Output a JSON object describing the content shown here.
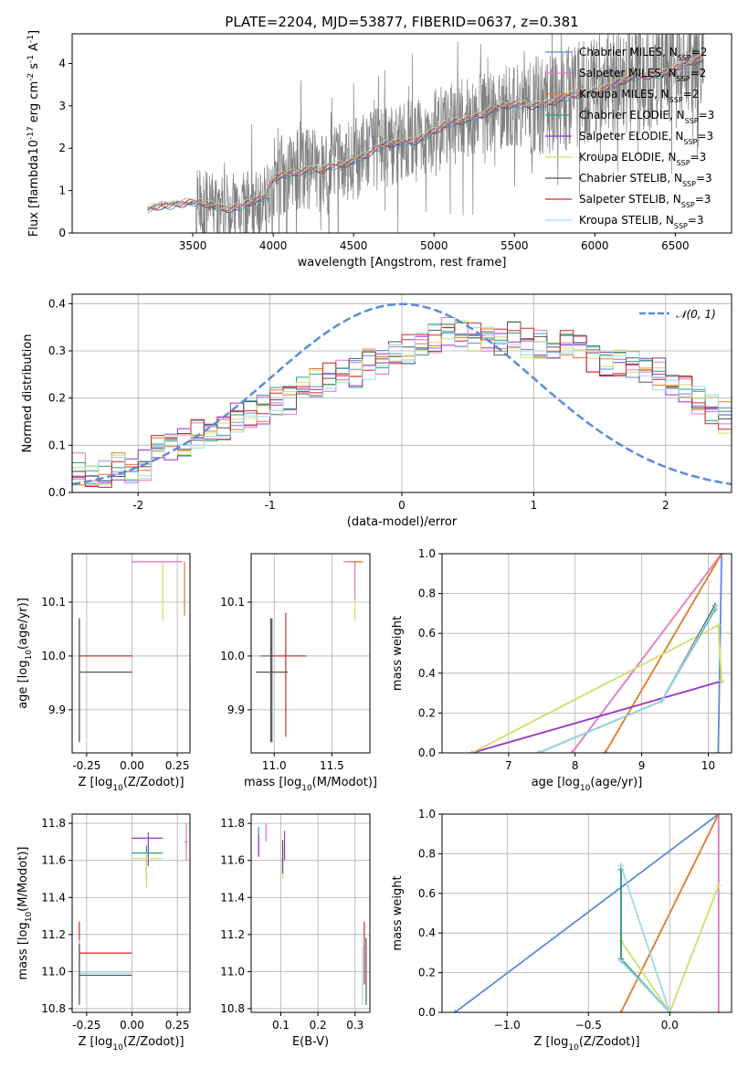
{
  "figure": {
    "title": "PLATE=2204, MJD=53877, FIBERID=0637, z=0.381"
  },
  "model_names": [
    "Chabrier MILES",
    "Salpeter MILES",
    "Kroupa MILES",
    "Chabrier ELODIE",
    "Salpeter ELODIE",
    "Kroupa ELODIE",
    "Chabrier STELIB",
    "Salpeter STELIB",
    "Kroupa STELIB"
  ],
  "model_nssp": [
    "2",
    "2",
    "2",
    "3",
    "3",
    "3",
    "3",
    "3",
    "3"
  ],
  "model_colors": [
    "#5b8cd8",
    "#e377c2",
    "#e07b2a",
    "#2ca080",
    "#9932cc",
    "#cde06a",
    "#555555",
    "#d62728",
    "#9ed9e8"
  ],
  "spectrum_color": "#808080",
  "chart_data": [
    {
      "id": "spectrum",
      "type": "line",
      "xlabel": "wavelength [Angstrom, rest frame]",
      "ylabel": "Flux [f$_\\lambda$10$^{-17}$ erg cm$^{-2}$ s$^{-1}$ A$^{-1}$]",
      "xlim": [
        2750,
        6850
      ],
      "ylim": [
        0,
        4.7
      ],
      "xticks": [
        3500,
        4000,
        4500,
        5000,
        5500,
        6000,
        6500
      ],
      "yticks": [
        0,
        1,
        2,
        3,
        4
      ],
      "grid": false,
      "legend_position": "top-right",
      "model_continuum": [
        [
          3220,
          0.55
        ],
        [
          3300,
          0.68
        ],
        [
          3400,
          0.72
        ],
        [
          3500,
          0.7
        ],
        [
          3600,
          0.65
        ],
        [
          3700,
          0.62
        ],
        [
          3800,
          0.66
        ],
        [
          3900,
          0.75
        ],
        [
          3950,
          0.8
        ],
        [
          4000,
          1.3
        ],
        [
          4100,
          1.45
        ],
        [
          4200,
          1.5
        ],
        [
          4300,
          1.45
        ],
        [
          4400,
          1.6
        ],
        [
          4500,
          1.75
        ],
        [
          4600,
          1.9
        ],
        [
          4700,
          2.05
        ],
        [
          4800,
          2.15
        ],
        [
          4900,
          2.25
        ],
        [
          5000,
          2.4
        ],
        [
          5100,
          2.55
        ],
        [
          5200,
          2.7
        ],
        [
          5300,
          2.85
        ],
        [
          5400,
          2.95
        ],
        [
          5500,
          3.0
        ],
        [
          5600,
          3.05
        ],
        [
          5700,
          3.1
        ],
        [
          5800,
          3.15
        ],
        [
          5900,
          3.25
        ],
        [
          6000,
          3.4
        ],
        [
          6100,
          3.5
        ],
        [
          6200,
          3.6
        ],
        [
          6300,
          3.7
        ],
        [
          6400,
          3.8
        ],
        [
          6500,
          3.9
        ],
        [
          6600,
          4.0
        ],
        [
          6700,
          4.1
        ]
      ],
      "observed_start": 3220,
      "observed_end": 6680,
      "noisy_start": 3520
    },
    {
      "id": "residuals",
      "type": "line",
      "xlabel": "(data-model)/error",
      "ylabel": "Normed distribution",
      "xlim": [
        -2.5,
        2.5
      ],
      "ylim": [
        0,
        0.42
      ],
      "xticks": [
        -2,
        -1,
        0,
        1,
        2
      ],
      "yticks": [
        0.0,
        0.1,
        0.2,
        0.3,
        0.4
      ],
      "grid": true,
      "legend": "$\\mathcal{N}(0,1)$",
      "gaussian": {
        "mean": 0,
        "sigma": 1,
        "color": "#5b8cd8"
      },
      "histogram_bin_width": 0.1,
      "histogram_envelope": [
        0.05,
        0.04,
        0.04,
        0.05,
        0.05,
        0.06,
        0.09,
        0.09,
        0.11,
        0.12,
        0.14,
        0.14,
        0.16,
        0.17,
        0.18,
        0.19,
        0.2,
        0.22,
        0.23,
        0.24,
        0.25,
        0.25,
        0.27,
        0.28,
        0.29,
        0.3,
        0.31,
        0.33,
        0.34,
        0.34,
        0.33,
        0.33,
        0.32,
        0.33,
        0.32,
        0.32,
        0.31,
        0.32,
        0.3,
        0.29,
        0.28,
        0.28,
        0.27,
        0.26,
        0.25,
        0.23,
        0.22,
        0.2,
        0.18,
        0.16
      ]
    },
    {
      "id": "Z-vs-age",
      "type": "scatter",
      "xlabel": "Z [log$_{10}$(Z/Z$_\\odot$)]",
      "ylabel": "age  [log$_{10}$(age/yr)]",
      "xlim": [
        -0.33,
        0.32
      ],
      "ylim": [
        9.82,
        10.19
      ],
      "xticks": [
        -0.25,
        0.0,
        0.25
      ],
      "yticks": [
        9.9,
        10.0,
        10.1
      ],
      "grid": true,
      "points": [
        {
          "x": -0.29,
          "y": 10.0,
          "xerr": [
            0.0,
            0.29
          ],
          "yerr": [
            0.16,
            0.07
          ],
          "model": 6
        },
        {
          "x": -0.29,
          "y": 9.97,
          "xerr": [
            0.0,
            0.29
          ],
          "yerr": [
            0.13,
            0.1
          ],
          "model": 6
        },
        {
          "x": -0.29,
          "y": 10.0,
          "xerr": [
            0.0,
            0.29
          ],
          "yerr": [
            0.0,
            0.0
          ],
          "model": 7
        },
        {
          "x": 0.29,
          "y": 10.175,
          "xerr": [
            0.0,
            0.0
          ],
          "yerr": [
            0.1,
            0.0
          ],
          "model": 2
        },
        {
          "x": 0.17,
          "y": 10.175,
          "xerr": [
            0.17,
            0.1
          ],
          "yerr": [
            0.11,
            0.0
          ],
          "model": 5
        },
        {
          "x": 0.16,
          "y": 10.175,
          "xerr": [
            0.16,
            0.12
          ],
          "yerr": [
            0.0,
            0.0
          ],
          "model": 1
        }
      ]
    },
    {
      "id": "mass-vs-age",
      "type": "scatter",
      "xlabel": "mass [log$_{10}$(M/M$_\\odot$)]",
      "ylabel": "",
      "xlim": [
        10.8,
        11.83
      ],
      "ylim": [
        9.82,
        10.19
      ],
      "xticks": [
        11.0,
        11.5
      ],
      "yticks": [
        9.9,
        10.0,
        10.1
      ],
      "grid": true,
      "points": [
        {
          "x": 10.98,
          "y": 10.0,
          "xerr": [
            0.1,
            0.3
          ],
          "yerr": [
            0.16,
            0.07
          ],
          "model": 6
        },
        {
          "x": 11.1,
          "y": 10.0,
          "xerr": [
            0.12,
            0.17
          ],
          "yerr": [
            0.15,
            0.08
          ],
          "model": 7
        },
        {
          "x": 10.97,
          "y": 9.97,
          "xerr": [
            0.13,
            0.15
          ],
          "yerr": [
            0.13,
            0.1
          ],
          "model": 6
        },
        {
          "x": 11.7,
          "y": 10.175,
          "xerr": [
            0.08,
            0.06
          ],
          "yerr": [
            0.11,
            0.0
          ],
          "model": 5
        },
        {
          "x": 11.7,
          "y": 10.175,
          "xerr": [
            0.1,
            0.07
          ],
          "yerr": [
            0.07,
            0.0
          ],
          "model": 1
        },
        {
          "x": 11.72,
          "y": 10.175,
          "xerr": [
            0.06,
            0.05
          ],
          "yerr": [
            0.0,
            0.0
          ],
          "model": 2
        }
      ]
    },
    {
      "id": "age-vs-weight",
      "type": "line",
      "xlabel": "age  [log$_{10}$(age/yr)]",
      "ylabel": "mass weight",
      "xlim": [
        6.0,
        10.35
      ],
      "ylim": [
        0,
        1.0
      ],
      "xticks": [
        7,
        8,
        9,
        10
      ],
      "yticks": [
        0.0,
        0.2,
        0.4,
        0.6,
        0.8,
        1.0
      ],
      "grid": true,
      "series": [
        {
          "model": 0,
          "points": [
            [
              10.15,
              0.0
            ],
            [
              10.2,
              1.0
            ]
          ]
        },
        {
          "model": 1,
          "points": [
            [
              7.95,
              0.0
            ],
            [
              10.2,
              1.0
            ]
          ]
        },
        {
          "model": 2,
          "points": [
            [
              8.45,
              0.0
            ],
            [
              10.2,
              1.0
            ]
          ]
        },
        {
          "model": 4,
          "points": [
            [
              6.45,
              0.0
            ],
            [
              10.2,
              0.36
            ]
          ]
        },
        {
          "model": 5,
          "points": [
            [
              6.45,
              0.0
            ],
            [
              10.15,
              0.64
            ],
            [
              10.2,
              0.36
            ]
          ]
        },
        {
          "model": 6,
          "points": [
            [
              7.45,
              0.0
            ],
            [
              9.3,
              0.26
            ],
            [
              10.1,
              0.74
            ]
          ]
        },
        {
          "model": 3,
          "points": [
            [
              7.45,
              0.0
            ],
            [
              9.3,
              0.26
            ],
            [
              10.1,
              0.72
            ]
          ]
        },
        {
          "model": 8,
          "points": [
            [
              7.45,
              0.0
            ],
            [
              9.3,
              0.26
            ],
            [
              10.12,
              0.74
            ]
          ]
        }
      ]
    },
    {
      "id": "Z-vs-mass",
      "type": "scatter",
      "xlabel": "Z [log$_{10}$(Z/Z$_\\odot$)]",
      "ylabel": "mass [log$_{10}$(M/M$_\\odot$)]",
      "xlim": [
        -0.33,
        0.32
      ],
      "ylim": [
        10.78,
        11.85
      ],
      "xticks": [
        -0.25,
        0.0,
        0.25
      ],
      "yticks": [
        10.8,
        11.0,
        11.2,
        11.4,
        11.6,
        11.8
      ],
      "grid": true,
      "points": [
        {
          "x": -0.29,
          "y": 11.1,
          "xerr": [
            0.0,
            0.29
          ],
          "yerr": [
            0.2,
            0.17
          ],
          "model": 7
        },
        {
          "x": -0.29,
          "y": 10.99,
          "xerr": [
            0.0,
            0.29
          ],
          "yerr": [
            0.17,
            0.18
          ],
          "model": 8
        },
        {
          "x": -0.29,
          "y": 10.98,
          "xerr": [
            0.0,
            0.29
          ],
          "yerr": [
            0.16,
            0.17
          ],
          "model": 6
        },
        {
          "x": 0.09,
          "y": 11.72,
          "xerr": [
            0.09,
            0.08
          ],
          "yerr": [
            0.15,
            0.03
          ],
          "model": 4
        },
        {
          "x": 0.08,
          "y": 11.64,
          "xerr": [
            0.08,
            0.09
          ],
          "yerr": [
            0.15,
            0.04
          ],
          "model": 3
        },
        {
          "x": 0.08,
          "y": 11.61,
          "xerr": [
            0.08,
            0.09
          ],
          "yerr": [
            0.16,
            0.03
          ],
          "model": 5
        },
        {
          "x": 0.3,
          "y": 11.7,
          "xerr": [
            0.01,
            0.01
          ],
          "yerr": [
            0.1,
            0.1
          ],
          "model": 1
        }
      ]
    },
    {
      "id": "EBV-vs-mass",
      "type": "scatter",
      "xlabel": "E(B-V)",
      "ylabel": "",
      "xlim": [
        0.02,
        0.34
      ],
      "ylim": [
        10.78,
        11.85
      ],
      "xticks": [
        0.1,
        0.2,
        0.3
      ],
      "yticks": [
        10.8,
        11.0,
        11.2,
        11.4,
        11.6,
        11.8
      ],
      "grid": true,
      "points": [
        {
          "x": 0.04,
          "y": 11.7,
          "xerr": [
            0,
            0
          ],
          "yerr": [
            0.08,
            0.08
          ],
          "model": 3
        },
        {
          "x": 0.04,
          "y": 11.68,
          "xerr": [
            0,
            0
          ],
          "yerr": [
            0.06,
            0.06
          ],
          "model": 4
        },
        {
          "x": 0.06,
          "y": 11.75,
          "xerr": [
            0,
            0
          ],
          "yerr": [
            0.05,
            0.05
          ],
          "model": 1
        },
        {
          "x": 0.105,
          "y": 11.6,
          "xerr": [
            0,
            0
          ],
          "yerr": [
            0.1,
            0.1
          ],
          "model": 5
        },
        {
          "x": 0.11,
          "y": 11.68,
          "xerr": [
            0,
            0
          ],
          "yerr": [
            0.08,
            0.08
          ],
          "model": 4
        },
        {
          "x": 0.105,
          "y": 11.62,
          "xerr": [
            0,
            0
          ],
          "yerr": [
            0.09,
            0.09
          ],
          "model": 6
        },
        {
          "x": 0.325,
          "y": 11.1,
          "xerr": [
            0,
            0
          ],
          "yerr": [
            0.17,
            0.17
          ],
          "model": 7
        },
        {
          "x": 0.33,
          "y": 11.0,
          "xerr": [
            0,
            0
          ],
          "yerr": [
            0.18,
            0.18
          ],
          "model": 6
        },
        {
          "x": 0.32,
          "y": 10.98,
          "xerr": [
            0,
            0
          ],
          "yerr": [
            0.16,
            0.16
          ],
          "model": 8
        }
      ]
    },
    {
      "id": "Z-vs-weight",
      "type": "line",
      "xlabel": "Z [log$_{10}$(Z/Z$_\\odot$)]",
      "ylabel": "mass weight",
      "xlim": [
        -1.4,
        0.38
      ],
      "ylim": [
        0,
        1.0
      ],
      "xticks": [
        -1.0,
        -0.5,
        0.0
      ],
      "yticks": [
        0.0,
        0.2,
        0.4,
        0.6,
        0.8,
        1.0
      ],
      "grid": true,
      "series": [
        {
          "model": 0,
          "points": [
            [
              -1.32,
              0.0
            ],
            [
              0.3,
              1.0
            ]
          ]
        },
        {
          "model": 2,
          "points": [
            [
              -0.3,
              0.0
            ],
            [
              0.3,
              1.0
            ]
          ]
        },
        {
          "model": 1,
          "points": [
            [
              0.3,
              0.0
            ],
            [
              0.3,
              1.0
            ]
          ]
        },
        {
          "model": 5,
          "points": [
            [
              -0.3,
              0.36
            ],
            [
              0.0,
              0.0
            ],
            [
              0.3,
              0.64
            ]
          ]
        },
        {
          "model": 6,
          "points": [
            [
              -0.3,
              0.74
            ],
            [
              -0.3,
              0.26
            ],
            [
              0.0,
              0.0
            ]
          ]
        },
        {
          "model": 3,
          "points": [
            [
              -0.3,
              0.72
            ],
            [
              -0.3,
              0.27
            ],
            [
              0.0,
              0.0
            ]
          ]
        },
        {
          "model": 8,
          "points": [
            [
              -0.3,
              0.74
            ],
            [
              0.0,
              0.0
            ],
            [
              -0.3,
              0.26
            ]
          ]
        }
      ]
    }
  ]
}
